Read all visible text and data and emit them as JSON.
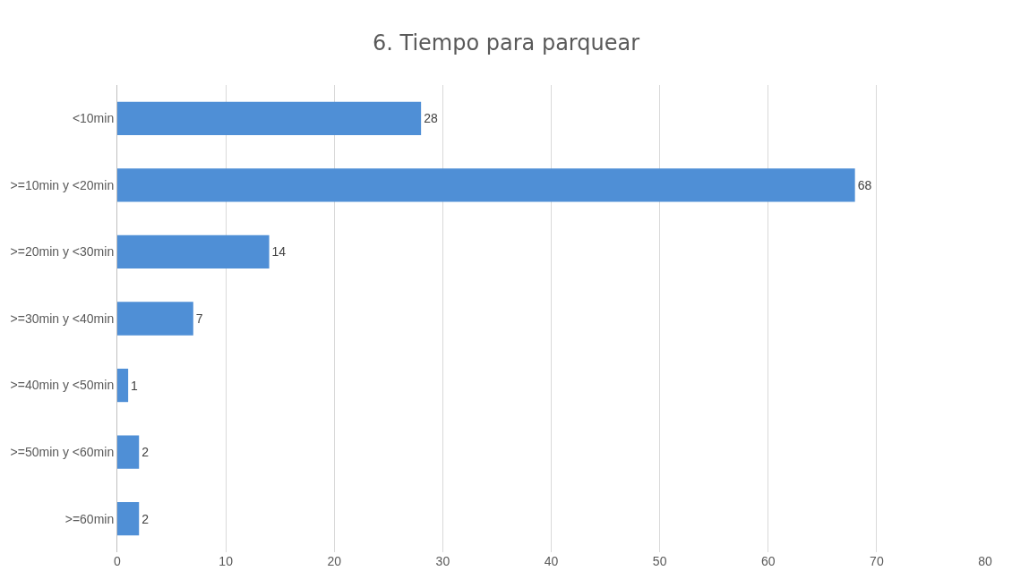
{
  "chart_data": {
    "type": "bar",
    "orientation": "horizontal",
    "title": "6. Tiempo para parquear",
    "categories": [
      "<10min",
      ">=10min y <20min",
      ">=20min y <30min",
      ">=30min y <40min",
      ">=40min y <50min",
      ">=50min y <60min",
      ">=60min"
    ],
    "values": [
      28,
      68,
      14,
      7,
      1,
      2,
      2
    ],
    "color": "#4f8fd6",
    "xlim": [
      0,
      80
    ],
    "xticks": [
      0,
      10,
      20,
      30,
      40,
      50,
      60,
      70,
      80
    ],
    "grid": "x",
    "data_labels": true
  }
}
